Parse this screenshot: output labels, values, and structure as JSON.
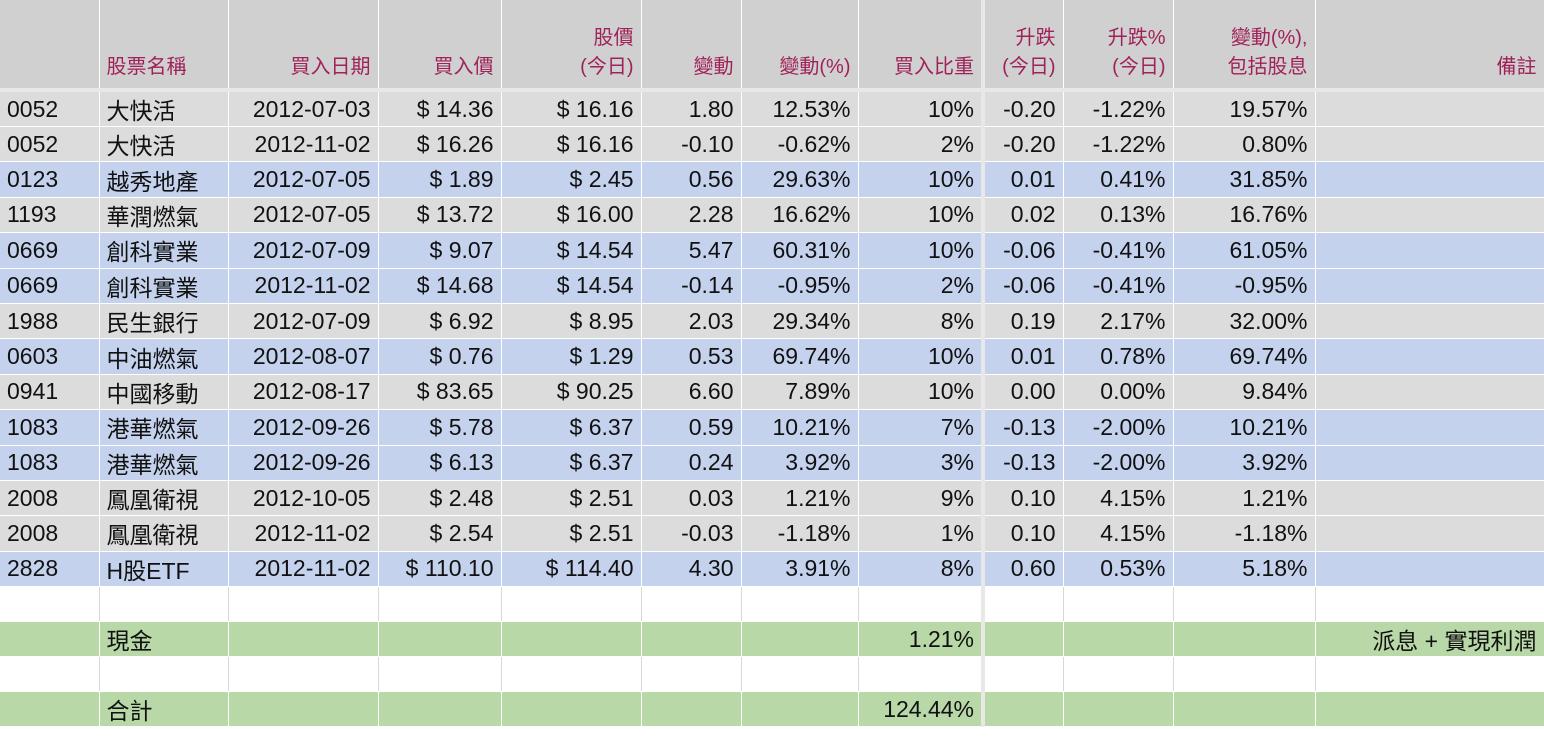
{
  "headers": {
    "code": "",
    "name": "股票名稱",
    "buy_date": "買入日期",
    "buy_price": "買入價",
    "price_line1": "股價",
    "price_line2": "(今日)",
    "change": "變動",
    "change_pct": "變動(%)",
    "weight": "買入比重",
    "day_change_line1": "升跌",
    "day_change_line2": "(今日)",
    "day_pct_line1": "升跌%",
    "day_pct_line2": "(今日)",
    "div_line1": "變動(%),",
    "div_line2": "包括股息",
    "remark": "備註"
  },
  "rows": [
    {
      "code": "0052",
      "name": "大快活",
      "date": "2012-07-03",
      "buy": "$ 14.36",
      "price": "$ 16.16",
      "chg": "1.80",
      "chg_pct": "12.53%",
      "weight": "10%",
      "day": "-0.20",
      "day_pct": "-1.22%",
      "div": "19.57%",
      "day_dir": "neg",
      "band": "gray"
    },
    {
      "code": "0052",
      "name": "大快活",
      "date": "2012-11-02",
      "buy": "$ 16.26",
      "price": "$ 16.16",
      "chg": "-0.10",
      "chg_pct": "-0.62%",
      "weight": "2%",
      "day": "-0.20",
      "day_pct": "-1.22%",
      "div": "0.80%",
      "day_dir": "neg",
      "band": "gray"
    },
    {
      "code": "0123",
      "name": "越秀地產",
      "date": "2012-07-05",
      "buy": "$ 1.89",
      "price": "$ 2.45",
      "chg": "0.56",
      "chg_pct": "29.63%",
      "weight": "10%",
      "day": "0.01",
      "day_pct": "0.41%",
      "div": "31.85%",
      "day_dir": "pos",
      "band": "blue"
    },
    {
      "code": "1193",
      "name": "華潤燃氣",
      "date": "2012-07-05",
      "buy": "$ 13.72",
      "price": "$ 16.00",
      "chg": "2.28",
      "chg_pct": "16.62%",
      "weight": "10%",
      "day": "0.02",
      "day_pct": "0.13%",
      "div": "16.76%",
      "day_dir": "pos",
      "band": "gray"
    },
    {
      "code": "0669",
      "name": "創科實業",
      "date": "2012-07-09",
      "buy": "$ 9.07",
      "price": "$ 14.54",
      "chg": "5.47",
      "chg_pct": "60.31%",
      "weight": "10%",
      "day": "-0.06",
      "day_pct": "-0.41%",
      "div": "61.05%",
      "day_dir": "neg",
      "band": "blue"
    },
    {
      "code": "0669",
      "name": "創科實業",
      "date": "2012-11-02",
      "buy": "$ 14.68",
      "price": "$ 14.54",
      "chg": "-0.14",
      "chg_pct": "-0.95%",
      "weight": "2%",
      "day": "-0.06",
      "day_pct": "-0.41%",
      "div": "-0.95%",
      "day_dir": "neg",
      "band": "blue"
    },
    {
      "code": "1988",
      "name": "民生銀行",
      "date": "2012-07-09",
      "buy": "$ 6.92",
      "price": "$ 8.95",
      "chg": "2.03",
      "chg_pct": "29.34%",
      "weight": "8%",
      "day": "0.19",
      "day_pct": "2.17%",
      "div": "32.00%",
      "day_dir": "pos",
      "band": "gray"
    },
    {
      "code": "0603",
      "name": "中油燃氣",
      "date": "2012-08-07",
      "buy": "$ 0.76",
      "price": "$ 1.29",
      "chg": "0.53",
      "chg_pct": "69.74%",
      "weight": "10%",
      "day": "0.01",
      "day_pct": "0.78%",
      "div": "69.74%",
      "day_dir": "pos",
      "band": "blue"
    },
    {
      "code": "0941",
      "name": "中國移動",
      "date": "2012-08-17",
      "buy": "$ 83.65",
      "price": "$ 90.25",
      "chg": "6.60",
      "chg_pct": "7.89%",
      "weight": "10%",
      "day": "0.00",
      "day_pct": "0.00%",
      "div": "9.84%",
      "day_dir": "zero",
      "band": "gray"
    },
    {
      "code": "1083",
      "name": "港華燃氣",
      "date": "2012-09-26",
      "buy": "$ 5.78",
      "price": "$ 6.37",
      "chg": "0.59",
      "chg_pct": "10.21%",
      "weight": "7%",
      "day": "-0.13",
      "day_pct": "-2.00%",
      "div": "10.21%",
      "day_dir": "neg",
      "band": "blue"
    },
    {
      "code": "1083",
      "name": "港華燃氣",
      "date": "2012-09-26",
      "buy": "$ 6.13",
      "price": "$ 6.37",
      "chg": "0.24",
      "chg_pct": "3.92%",
      "weight": "3%",
      "day": "-0.13",
      "day_pct": "-2.00%",
      "div": "3.92%",
      "day_dir": "neg",
      "band": "blue"
    },
    {
      "code": "2008",
      "name": "鳳凰衛視",
      "date": "2012-10-05",
      "buy": "$ 2.48",
      "price": "$ 2.51",
      "chg": "0.03",
      "chg_pct": "1.21%",
      "weight": "9%",
      "day": "0.10",
      "day_pct": "4.15%",
      "div": "1.21%",
      "day_dir": "pos",
      "band": "gray"
    },
    {
      "code": "2008",
      "name": "鳳凰衛視",
      "date": "2012-11-02",
      "buy": "$ 2.54",
      "price": "$ 2.51",
      "chg": "-0.03",
      "chg_pct": "-1.18%",
      "weight": "1%",
      "day": "0.10",
      "day_pct": "4.15%",
      "div": "-1.18%",
      "day_dir": "pos",
      "band": "gray"
    },
    {
      "code": "2828",
      "name": "H股ETF",
      "date": "2012-11-02",
      "buy": "$ 110.10",
      "price": "$ 114.40",
      "chg": "4.30",
      "chg_pct": "3.91%",
      "weight": "8%",
      "day": "0.60",
      "day_pct": "0.53%",
      "div": "5.18%",
      "day_dir": "pos",
      "band": "blue"
    }
  ],
  "cash": {
    "label": "現金",
    "weight": "1.21%",
    "remark": "派息 + 實現利潤"
  },
  "total": {
    "label": "合計",
    "weight": "124.44%"
  },
  "colors": {
    "negative": "#ee1111",
    "positive": "#117711",
    "header_text": "#a0225a",
    "band_gray": "#dcdcdc",
    "band_blue": "#c4d2ee",
    "summary_green": "#b8d8a8"
  }
}
